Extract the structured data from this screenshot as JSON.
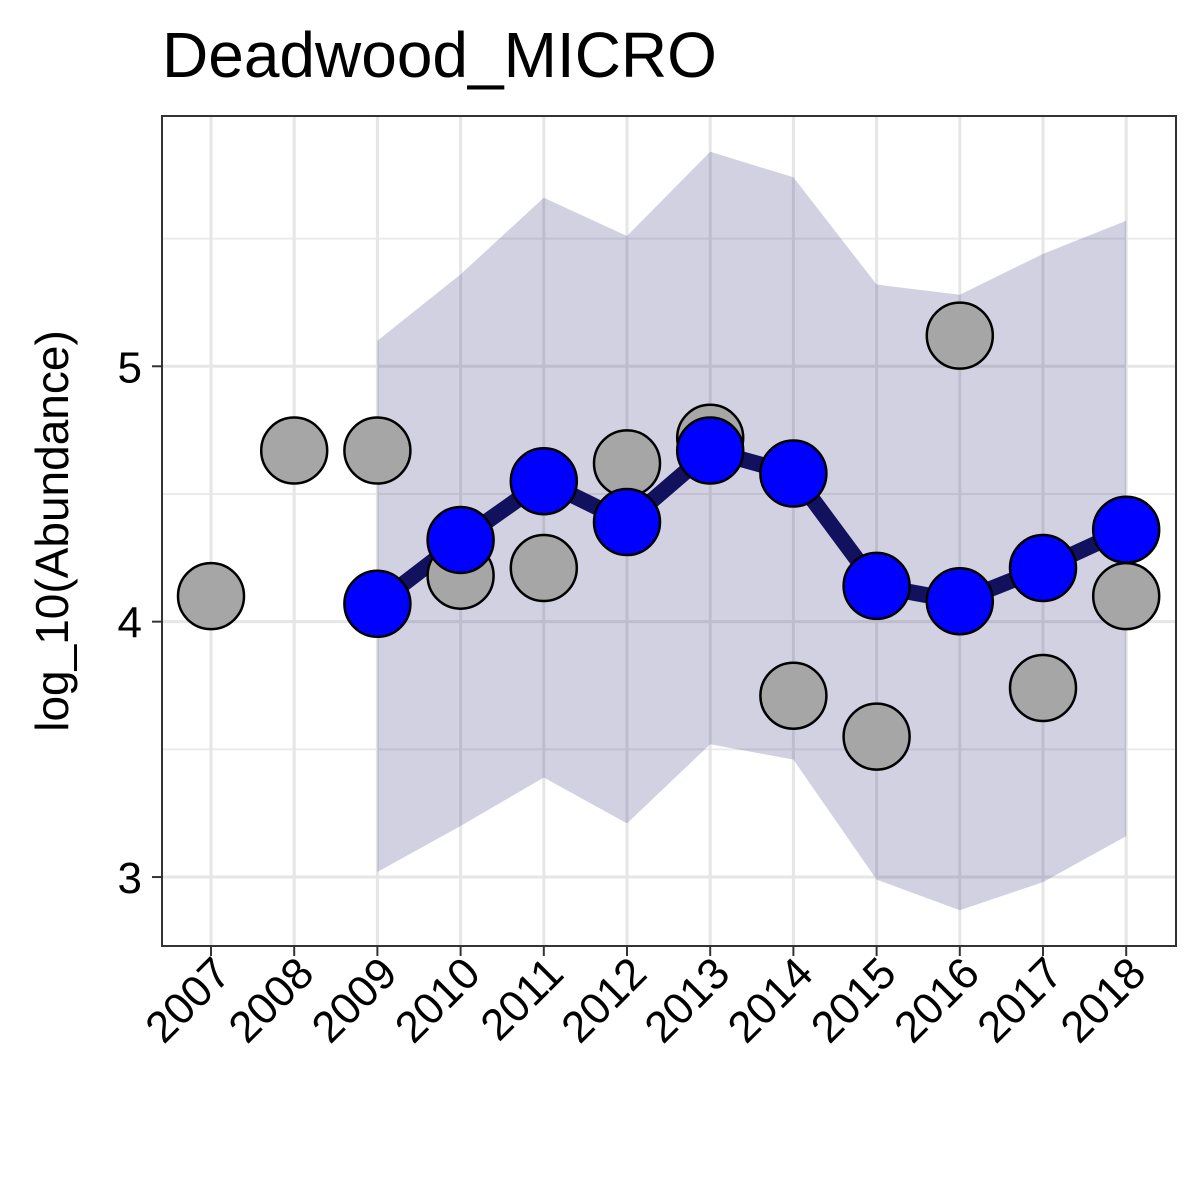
{
  "chart_data": {
    "type": "line",
    "title": "Deadwood_MICRO",
    "xlabel": "",
    "ylabel": "log_10(Abundance)",
    "x": [
      "2007",
      "2008",
      "2009",
      "2010",
      "2011",
      "2012",
      "2013",
      "2014",
      "2015",
      "2016",
      "2017",
      "2018"
    ],
    "ylim": [
      2.73,
      5.98
    ],
    "yticks": [
      "3",
      "4",
      "5"
    ],
    "grid": true,
    "legend": "none",
    "series": [
      {
        "kind": "observed-points",
        "color": "#a6a6a6",
        "x": [
          "2007",
          "2008",
          "2009",
          "2010",
          "2011",
          "2012",
          "2013",
          "2014",
          "2015",
          "2016",
          "2017",
          "2018"
        ],
        "values": [
          4.1,
          4.67,
          4.67,
          4.18,
          4.21,
          4.62,
          4.72,
          3.71,
          3.55,
          5.12,
          3.74,
          4.1
        ]
      },
      {
        "kind": "estimate-line",
        "color": "#0000ff",
        "line_color": "#11115e",
        "x": [
          "2009",
          "2010",
          "2011",
          "2012",
          "2013",
          "2014",
          "2015",
          "2016",
          "2017",
          "2018"
        ],
        "values": [
          4.07,
          4.32,
          4.55,
          4.39,
          4.67,
          4.58,
          4.14,
          4.08,
          4.21,
          4.36
        ]
      },
      {
        "kind": "confidence-band",
        "color": "#d1d1e3",
        "x": [
          "2009",
          "2010",
          "2011",
          "2012",
          "2013",
          "2014",
          "2015",
          "2016",
          "2017",
          "2018"
        ],
        "lower": [
          3.02,
          3.2,
          3.39,
          3.21,
          3.52,
          3.46,
          2.99,
          2.87,
          2.98,
          3.16
        ],
        "upper": [
          5.1,
          5.36,
          5.66,
          5.51,
          5.84,
          5.74,
          5.32,
          5.28,
          5.44,
          5.57
        ]
      }
    ]
  }
}
